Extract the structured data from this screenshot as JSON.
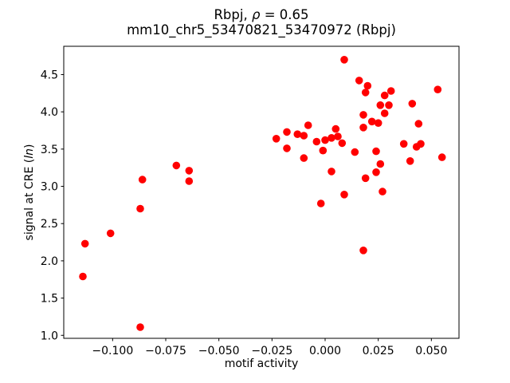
{
  "title": {
    "prefix": "Rbpj, ",
    "rho": "ρ",
    "suffix": " = 0.65",
    "line2": "mm10_chr5_53470821_53470972 (Rbpj)"
  },
  "ylabel": {
    "prefix": "signal at CRE (",
    "italic": "ln",
    "suffix": ")"
  },
  "xlabel": "motif activity",
  "chart_data": {
    "type": "scatter",
    "title": "Rbpj, ρ = 0.65",
    "subtitle": "mm10_chr5_53470821_53470972 (Rbpj)",
    "xlabel": "motif activity",
    "ylabel": "signal at CRE (ln)",
    "rho": 0.65,
    "marker_color": "#ff0000",
    "axis_color": "#000000",
    "xlim": [
      -0.123,
      0.063
    ],
    "ylim": [
      0.96,
      4.88
    ],
    "xticks": [
      -0.1,
      -0.075,
      -0.05,
      -0.025,
      0.0,
      0.025,
      0.05
    ],
    "xtick_labels": [
      "−0.100",
      "−0.075",
      "−0.050",
      "−0.025",
      "0.000",
      "0.025",
      "0.050"
    ],
    "yticks": [
      1.0,
      1.5,
      2.0,
      2.5,
      3.0,
      3.5,
      4.0,
      4.5
    ],
    "ytick_labels": [
      "1.0",
      "1.5",
      "2.0",
      "2.5",
      "3.0",
      "3.5",
      "4.0",
      "4.5"
    ],
    "grid": false,
    "legend": null,
    "points": [
      [
        -0.114,
        1.79
      ],
      [
        -0.113,
        2.23
      ],
      [
        -0.101,
        2.37
      ],
      [
        -0.087,
        1.11
      ],
      [
        -0.087,
        2.7
      ],
      [
        -0.086,
        3.09
      ],
      [
        -0.07,
        3.28
      ],
      [
        -0.064,
        3.21
      ],
      [
        -0.064,
        3.07
      ],
      [
        -0.023,
        3.64
      ],
      [
        -0.018,
        3.73
      ],
      [
        -0.013,
        3.7
      ],
      [
        -0.01,
        3.68
      ],
      [
        -0.008,
        3.82
      ],
      [
        -0.018,
        3.51
      ],
      [
        -0.01,
        3.38
      ],
      [
        -0.004,
        3.6
      ],
      [
        0.0,
        3.62
      ],
      [
        -0.001,
        3.48
      ],
      [
        0.005,
        3.77
      ],
      [
        0.006,
        3.67
      ],
      [
        0.003,
        3.65
      ],
      [
        0.008,
        3.58
      ],
      [
        0.014,
        3.46
      ],
      [
        0.003,
        3.2
      ],
      [
        0.019,
        3.11
      ],
      [
        0.024,
        3.19
      ],
      [
        0.024,
        3.47
      ],
      [
        0.026,
        3.3
      ],
      [
        0.027,
        2.93
      ],
      [
        0.009,
        2.89
      ],
      [
        -0.002,
        2.77
      ],
      [
        0.018,
        2.14
      ],
      [
        0.009,
        4.7
      ],
      [
        0.016,
        4.42
      ],
      [
        0.02,
        4.35
      ],
      [
        0.019,
        4.26
      ],
      [
        0.028,
        4.22
      ],
      [
        0.031,
        4.28
      ],
      [
        0.026,
        4.09
      ],
      [
        0.03,
        4.09
      ],
      [
        0.028,
        3.98
      ],
      [
        0.041,
        4.11
      ],
      [
        0.018,
        3.96
      ],
      [
        0.022,
        3.87
      ],
      [
        0.025,
        3.85
      ],
      [
        0.018,
        3.79
      ],
      [
        0.044,
        3.84
      ],
      [
        0.053,
        4.3
      ],
      [
        0.037,
        3.57
      ],
      [
        0.043,
        3.53
      ],
      [
        0.045,
        3.57
      ],
      [
        0.04,
        3.34
      ],
      [
        0.055,
        3.39
      ]
    ]
  }
}
